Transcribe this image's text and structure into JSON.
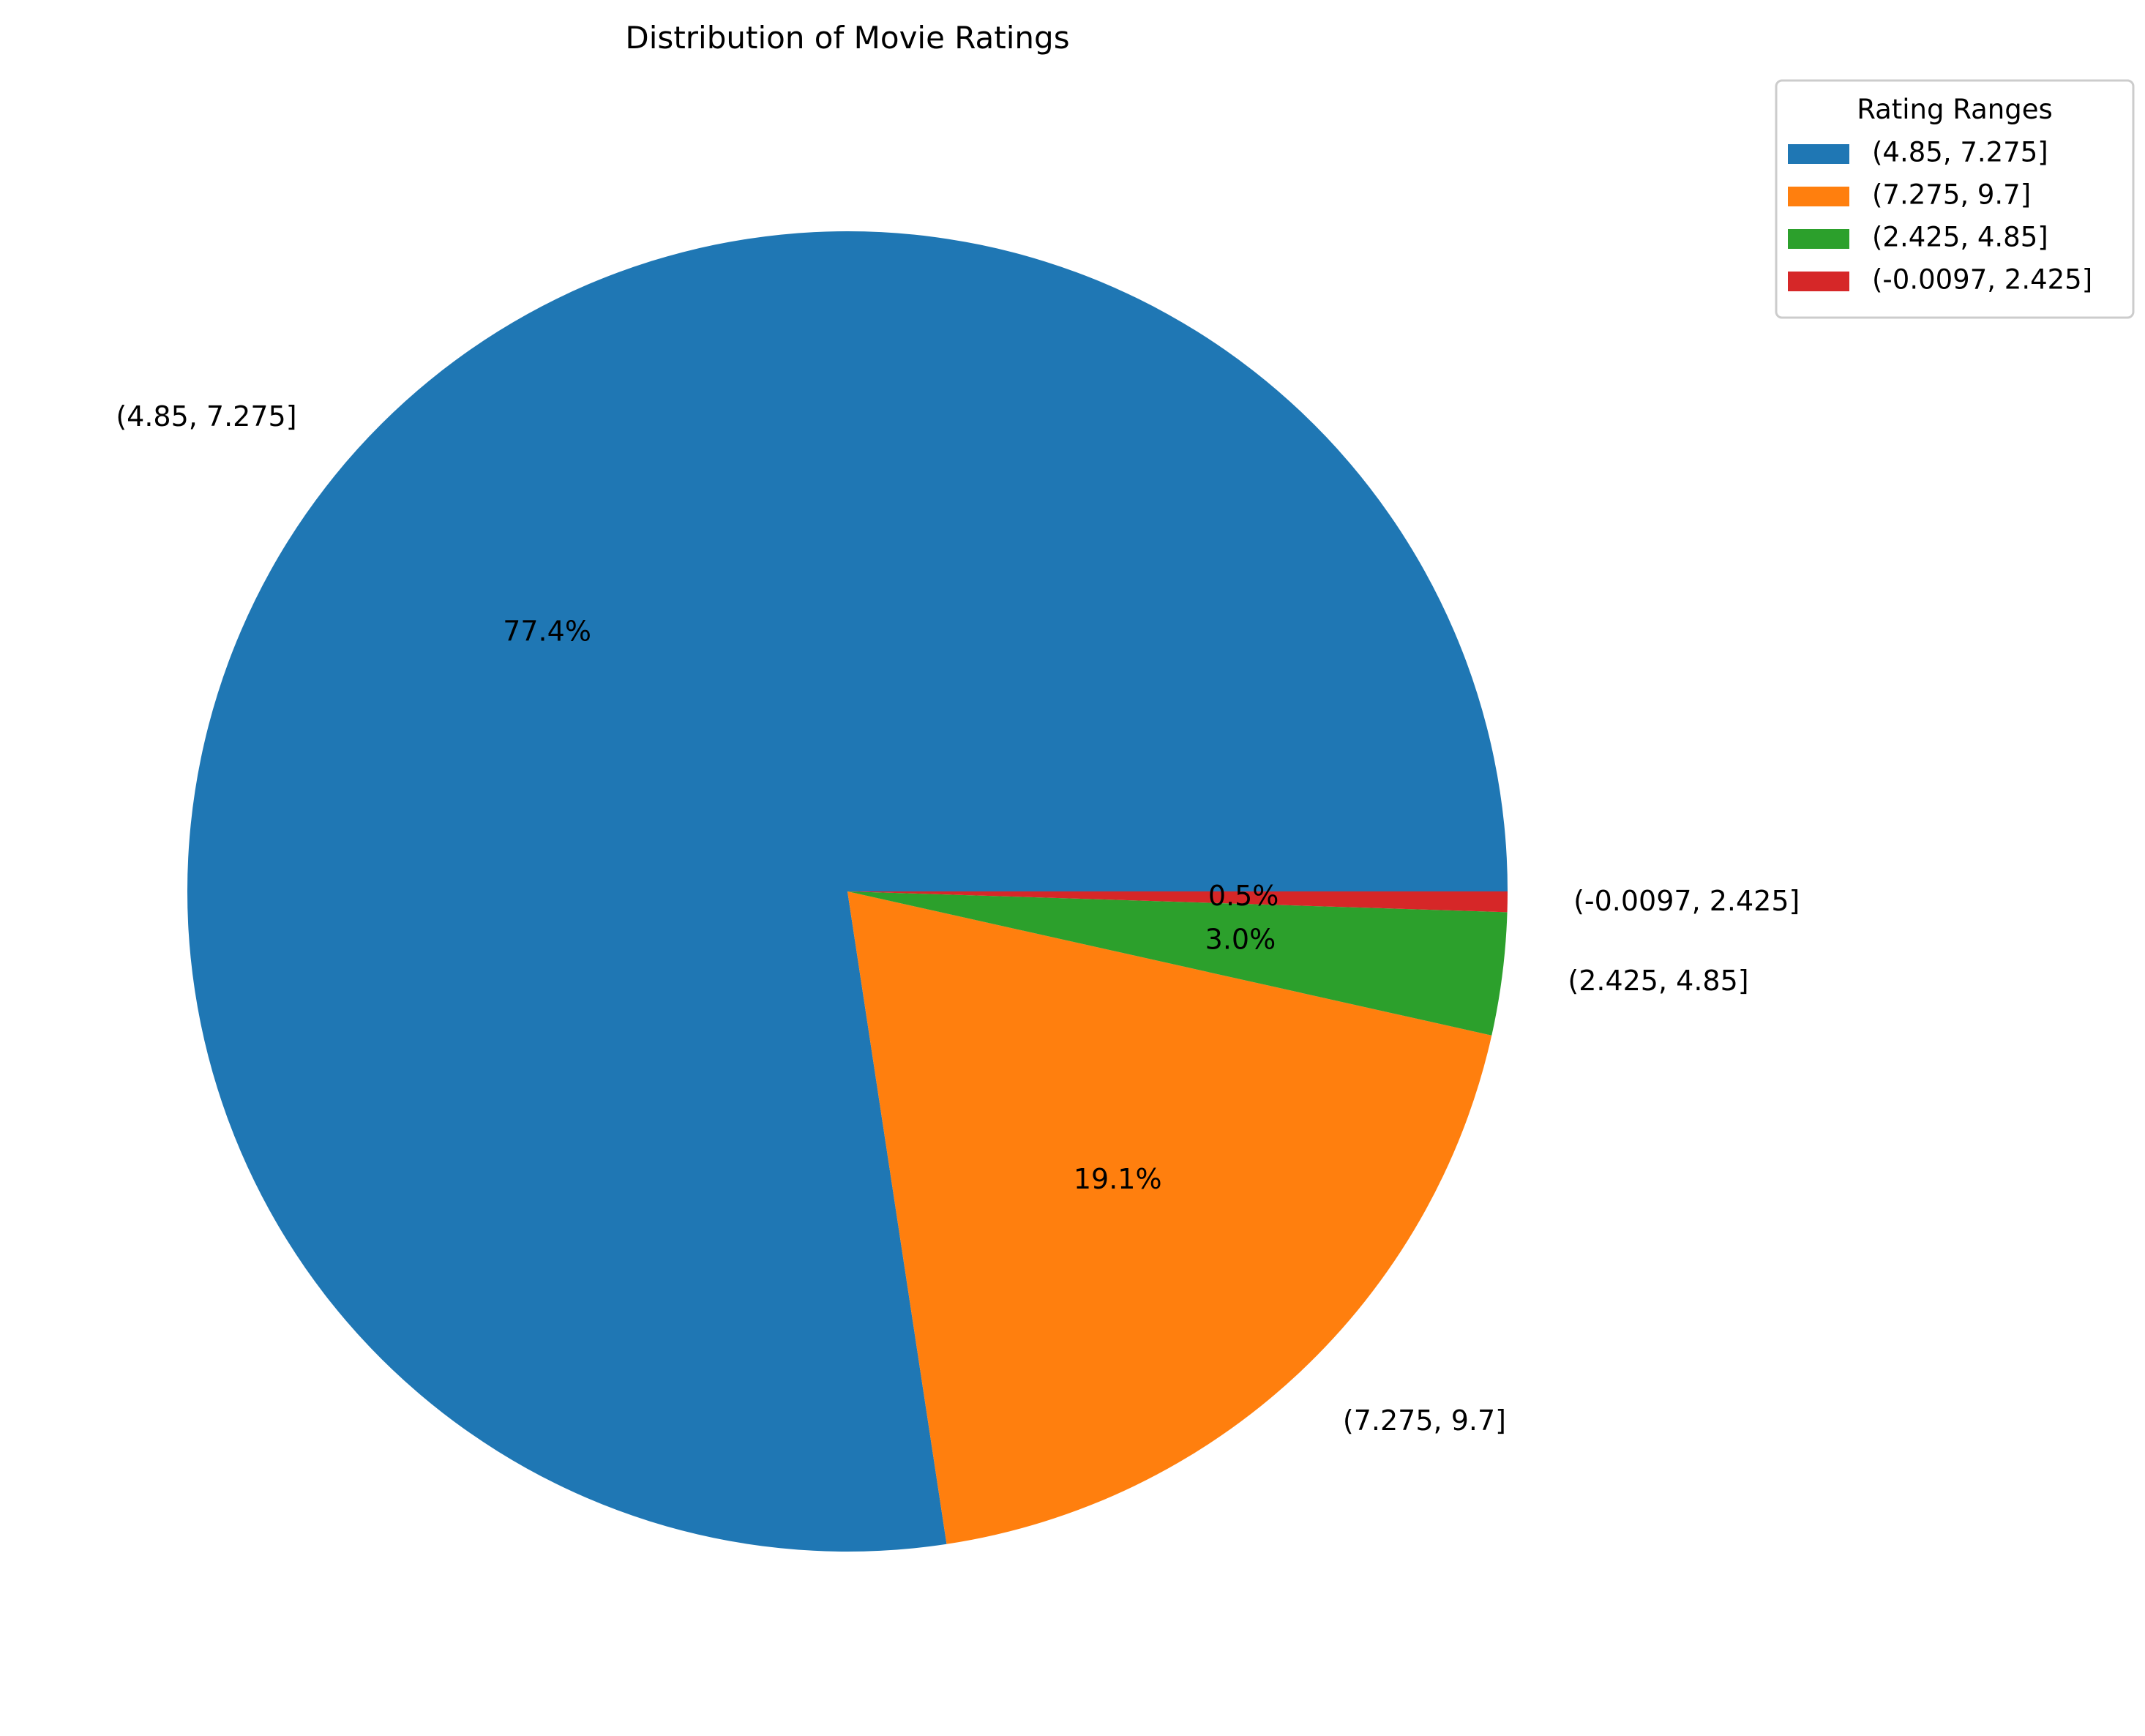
{
  "chart_data": {
    "type": "pie",
    "title": "Distribution of Movie Ratings",
    "start_angle_deg": 0,
    "direction": "counterclockwise",
    "slices": [
      {
        "label": "(4.85, 7.275]",
        "value": 77.4,
        "pct_label": "77.4%",
        "color": "#1f77b4"
      },
      {
        "label": "(7.275, 9.7]",
        "value": 19.1,
        "pct_label": "19.1%",
        "color": "#ff7f0e"
      },
      {
        "label": "(2.425, 4.85]",
        "value": 3.0,
        "pct_label": "3.0%",
        "color": "#2ca02c"
      },
      {
        "label": "(-0.0097, 2.425]",
        "value": 0.5,
        "pct_label": "0.5%",
        "color": "#d62728"
      }
    ],
    "legend": {
      "title": "Rating Ranges",
      "placement": "top-right",
      "entries": [
        "(4.85, 7.275]",
        "(7.275, 9.7]",
        "(2.425, 4.85]",
        "(-0.0097, 2.425]"
      ]
    }
  }
}
